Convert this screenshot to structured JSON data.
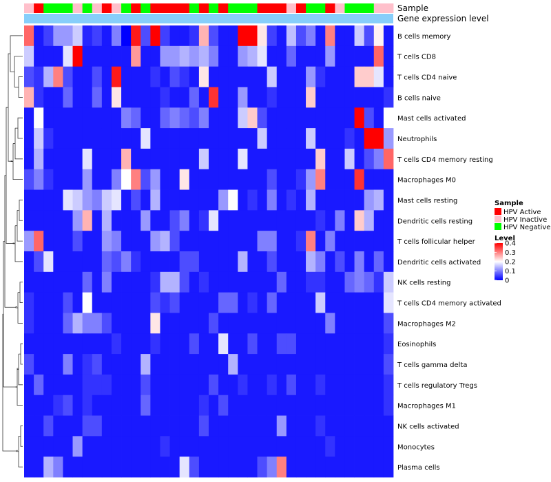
{
  "chart_data": {
    "type": "heatmap",
    "annotation_rows": [
      "Sample",
      "Gene expression level"
    ],
    "row_labels": [
      "B cells memory",
      "T cells CD8",
      "T cells CD4 naive",
      "B cells naive",
      "Mast cells activated",
      "Neutrophils",
      "T cells CD4 memory resting",
      "Macrophages M0",
      "Mast cells resting",
      "Dendritic cells resting",
      "T cells follicular helper",
      "Dendritic cells activated",
      "NK cells resting",
      "T cells CD4 memory activated",
      "Macrophages M2",
      "Eosinophils",
      "T cells gamma delta",
      "T cells regulatory  Tregs",
      "Macrophages M1",
      "NK cells activated",
      "Monocytes",
      "Plasma cells"
    ],
    "sample_groups": [
      "Inactive",
      "Active",
      "Negative",
      "Negative",
      "Negative",
      "Inactive",
      "Negative",
      "Inactive",
      "Active",
      "Inactive",
      "Negative",
      "Active",
      "Negative",
      "Active",
      "Active",
      "Active",
      "Active",
      "Negative",
      "Active",
      "Negative",
      "Active",
      "Negative",
      "Negative",
      "Negative",
      "Active",
      "Active",
      "Active",
      "Inactive",
      "Active",
      "Negative",
      "Negative",
      "Active",
      "Inactive",
      "Negative",
      "Negative",
      "Negative",
      "Inactive",
      "Inactive"
    ],
    "sample_legend": {
      "title": "Sample",
      "entries": [
        {
          "label": "HPV Active",
          "color": "#ff0000"
        },
        {
          "label": "HPV Inactive",
          "color": "#ffc0cb"
        },
        {
          "label": "HPV Negative",
          "color": "#00ff00"
        }
      ]
    },
    "expression_bar_color": "#87cefa",
    "color_scale": {
      "title": "Level",
      "min": 0,
      "max": 0.4,
      "ticks": [
        {
          "value": 0.4,
          "label": "0.4"
        },
        {
          "value": 0.3,
          "label": "0.3"
        },
        {
          "value": 0.2,
          "label": "0.2"
        },
        {
          "value": 0.1,
          "label": "0.1"
        },
        {
          "value": 0,
          "label": "0"
        }
      ],
      "stops": [
        {
          "value": 0,
          "color": "#0000ff"
        },
        {
          "value": 0.2,
          "color": "#ffffff"
        },
        {
          "value": 0.4,
          "color": "#ff0000"
        }
      ]
    },
    "values": [
      [
        0.32,
        0.02,
        0.05,
        0.12,
        0.12,
        0.16,
        0.03,
        0.05,
        0.02,
        0.1,
        0.0,
        0.38,
        0.06,
        0.4,
        0.05,
        0.02,
        0.02,
        0.04,
        0.26,
        0.06,
        0.02,
        0.02,
        0.4,
        0.4,
        0.22,
        0.05,
        0.02,
        0.15,
        0.06,
        0.1,
        0.02,
        0.3,
        0.02,
        0.02,
        0.16,
        0.06,
        0.21,
        0.02
      ],
      [
        0.16,
        0.02,
        0.02,
        0.02,
        0.18,
        0.4,
        0.02,
        0.02,
        0.02,
        0.02,
        0.02,
        0.28,
        0.02,
        0.02,
        0.12,
        0.12,
        0.14,
        0.12,
        0.14,
        0.1,
        0.02,
        0.02,
        0.12,
        0.14,
        0.18,
        0.02,
        0.02,
        0.08,
        0.02,
        0.02,
        0.02,
        0.12,
        0.02,
        0.02,
        0.02,
        0.02,
        0.32,
        0.02
      ],
      [
        0.06,
        0.04,
        0.14,
        0.3,
        0.06,
        0.02,
        0.02,
        0.06,
        0.02,
        0.38,
        0.02,
        0.02,
        0.02,
        0.04,
        0.02,
        0.06,
        0.04,
        0.02,
        0.22,
        0.02,
        0.02,
        0.02,
        0.02,
        0.02,
        0.02,
        0.16,
        0.02,
        0.02,
        0.02,
        0.12,
        0.04,
        0.02,
        0.02,
        0.02,
        0.24,
        0.24,
        0.18,
        0.02
      ],
      [
        0.26,
        0.04,
        0.02,
        0.02,
        0.08,
        0.02,
        0.02,
        0.08,
        0.02,
        0.22,
        0.02,
        0.02,
        0.02,
        0.02,
        0.04,
        0.02,
        0.02,
        0.08,
        0.02,
        0.36,
        0.02,
        0.02,
        0.12,
        0.02,
        0.02,
        0.04,
        0.02,
        0.02,
        0.02,
        0.24,
        0.02,
        0.02,
        0.02,
        0.02,
        0.02,
        0.02,
        0.02,
        0.04
      ],
      [
        0.02,
        0.2,
        0.02,
        0.02,
        0.02,
        0.02,
        0.02,
        0.02,
        0.02,
        0.02,
        0.1,
        0.08,
        0.02,
        0.02,
        0.08,
        0.1,
        0.08,
        0.06,
        0.1,
        0.02,
        0.02,
        0.02,
        0.16,
        0.24,
        0.06,
        0.02,
        0.02,
        0.02,
        0.02,
        0.02,
        0.02,
        0.02,
        0.02,
        0.02,
        0.4,
        0.06,
        0.02,
        0.2
      ],
      [
        0.02,
        0.16,
        0.04,
        0.02,
        0.02,
        0.02,
        0.02,
        0.02,
        0.02,
        0.02,
        0.02,
        0.02,
        0.18,
        0.02,
        0.02,
        0.02,
        0.02,
        0.02,
        0.02,
        0.02,
        0.02,
        0.02,
        0.02,
        0.02,
        0.16,
        0.02,
        0.02,
        0.02,
        0.02,
        0.16,
        0.02,
        0.02,
        0.02,
        0.04,
        0.02,
        0.4,
        0.4,
        0.12
      ],
      [
        0.02,
        0.14,
        0.02,
        0.02,
        0.02,
        0.02,
        0.18,
        0.02,
        0.02,
        0.02,
        0.26,
        0.02,
        0.02,
        0.02,
        0.02,
        0.02,
        0.02,
        0.02,
        0.16,
        0.02,
        0.02,
        0.02,
        0.18,
        0.02,
        0.02,
        0.02,
        0.02,
        0.02,
        0.02,
        0.02,
        0.24,
        0.02,
        0.02,
        0.16,
        0.02,
        0.06,
        0.1,
        0.32
      ],
      [
        0.06,
        0.1,
        0.04,
        0.02,
        0.02,
        0.02,
        0.12,
        0.02,
        0.02,
        0.1,
        0.2,
        0.3,
        0.06,
        0.12,
        0.02,
        0.02,
        0.22,
        0.02,
        0.02,
        0.02,
        0.02,
        0.02,
        0.02,
        0.02,
        0.02,
        0.06,
        0.02,
        0.02,
        0.04,
        0.12,
        0.3,
        0.02,
        0.02,
        0.02,
        0.36,
        0.02,
        0.02,
        0.02
      ],
      [
        0.02,
        0.02,
        0.02,
        0.02,
        0.18,
        0.16,
        0.12,
        0.1,
        0.16,
        0.18,
        0.02,
        0.06,
        0.02,
        0.14,
        0.02,
        0.02,
        0.02,
        0.02,
        0.02,
        0.02,
        0.12,
        0.2,
        0.02,
        0.04,
        0.02,
        0.1,
        0.02,
        0.04,
        0.02,
        0.14,
        0.02,
        0.02,
        0.02,
        0.02,
        0.02,
        0.12,
        0.14,
        0.02
      ],
      [
        0.02,
        0.02,
        0.02,
        0.02,
        0.02,
        0.12,
        0.26,
        0.02,
        0.14,
        0.02,
        0.02,
        0.02,
        0.12,
        0.02,
        0.02,
        0.06,
        0.1,
        0.02,
        0.04,
        0.18,
        0.02,
        0.02,
        0.02,
        0.02,
        0.02,
        0.02,
        0.02,
        0.02,
        0.02,
        0.02,
        0.04,
        0.02,
        0.1,
        0.02,
        0.24,
        0.14,
        0.02,
        0.02
      ],
      [
        0.12,
        0.32,
        0.02,
        0.02,
        0.02,
        0.06,
        0.02,
        0.02,
        0.12,
        0.1,
        0.02,
        0.02,
        0.02,
        0.12,
        0.14,
        0.06,
        0.02,
        0.02,
        0.02,
        0.02,
        0.02,
        0.02,
        0.02,
        0.02,
        0.1,
        0.1,
        0.02,
        0.02,
        0.04,
        0.3,
        0.02,
        0.1,
        0.02,
        0.02,
        0.02,
        0.02,
        0.02,
        0.02
      ],
      [
        0.02,
        0.06,
        0.18,
        0.02,
        0.02,
        0.02,
        0.02,
        0.02,
        0.08,
        0.06,
        0.1,
        0.04,
        0.02,
        0.02,
        0.02,
        0.02,
        0.06,
        0.06,
        0.02,
        0.02,
        0.02,
        0.02,
        0.14,
        0.02,
        0.02,
        0.06,
        0.02,
        0.02,
        0.02,
        0.14,
        0.1,
        0.02,
        0.06,
        0.02,
        0.1,
        0.02,
        0.08,
        0.02
      ],
      [
        0.02,
        0.02,
        0.02,
        0.02,
        0.02,
        0.02,
        0.08,
        0.02,
        0.1,
        0.02,
        0.02,
        0.02,
        0.02,
        0.04,
        0.14,
        0.14,
        0.06,
        0.02,
        0.04,
        0.02,
        0.02,
        0.02,
        0.02,
        0.02,
        0.02,
        0.02,
        0.08,
        0.02,
        0.02,
        0.04,
        0.04,
        0.02,
        0.02,
        0.08,
        0.1,
        0.08,
        0.04,
        0.16
      ],
      [
        0.04,
        0.02,
        0.02,
        0.02,
        0.06,
        0.02,
        0.2,
        0.02,
        0.02,
        0.02,
        0.02,
        0.02,
        0.02,
        0.06,
        0.04,
        0.06,
        0.02,
        0.02,
        0.02,
        0.02,
        0.08,
        0.08,
        0.02,
        0.04,
        0.02,
        0.08,
        0.02,
        0.02,
        0.02,
        0.02,
        0.16,
        0.02,
        0.02,
        0.02,
        0.02,
        0.02,
        0.02,
        0.18
      ],
      [
        0.04,
        0.02,
        0.02,
        0.02,
        0.08,
        0.14,
        0.1,
        0.1,
        0.06,
        0.02,
        0.02,
        0.02,
        0.02,
        0.22,
        0.02,
        0.02,
        0.02,
        0.02,
        0.02,
        0.06,
        0.02,
        0.02,
        0.02,
        0.02,
        0.02,
        0.02,
        0.02,
        0.02,
        0.02,
        0.02,
        0.02,
        0.1,
        0.02,
        0.02,
        0.02,
        0.02,
        0.02,
        0.06
      ],
      [
        0.02,
        0.02,
        0.02,
        0.02,
        0.02,
        0.02,
        0.02,
        0.02,
        0.02,
        0.04,
        0.02,
        0.02,
        0.02,
        0.04,
        0.02,
        0.02,
        0.02,
        0.06,
        0.02,
        0.02,
        0.18,
        0.02,
        0.02,
        0.06,
        0.02,
        0.02,
        0.06,
        0.06,
        0.02,
        0.02,
        0.02,
        0.02,
        0.02,
        0.02,
        0.02,
        0.02,
        0.02,
        0.04
      ],
      [
        0.06,
        0.02,
        0.02,
        0.02,
        0.1,
        0.02,
        0.04,
        0.06,
        0.02,
        0.02,
        0.02,
        0.02,
        0.14,
        0.02,
        0.02,
        0.02,
        0.02,
        0.02,
        0.02,
        0.02,
        0.02,
        0.14,
        0.02,
        0.02,
        0.02,
        0.02,
        0.02,
        0.02,
        0.02,
        0.02,
        0.02,
        0.02,
        0.02,
        0.02,
        0.02,
        0.02,
        0.02,
        0.06
      ],
      [
        0.02,
        0.08,
        0.02,
        0.02,
        0.02,
        0.02,
        0.04,
        0.04,
        0.04,
        0.02,
        0.02,
        0.02,
        0.06,
        0.02,
        0.02,
        0.02,
        0.02,
        0.02,
        0.02,
        0.06,
        0.02,
        0.02,
        0.04,
        0.02,
        0.02,
        0.04,
        0.02,
        0.06,
        0.02,
        0.02,
        0.04,
        0.02,
        0.02,
        0.02,
        0.02,
        0.02,
        0.02,
        0.04
      ],
      [
        0.02,
        0.02,
        0.02,
        0.04,
        0.06,
        0.02,
        0.04,
        0.02,
        0.02,
        0.02,
        0.02,
        0.02,
        0.08,
        0.02,
        0.02,
        0.02,
        0.02,
        0.02,
        0.04,
        0.02,
        0.06,
        0.02,
        0.02,
        0.02,
        0.02,
        0.02,
        0.02,
        0.02,
        0.02,
        0.02,
        0.02,
        0.02,
        0.02,
        0.02,
        0.02,
        0.02,
        0.02,
        0.04
      ],
      [
        0.02,
        0.02,
        0.06,
        0.02,
        0.02,
        0.02,
        0.06,
        0.06,
        0.02,
        0.02,
        0.02,
        0.02,
        0.02,
        0.02,
        0.02,
        0.02,
        0.02,
        0.02,
        0.06,
        0.02,
        0.02,
        0.02,
        0.02,
        0.02,
        0.02,
        0.02,
        0.12,
        0.02,
        0.02,
        0.02,
        0.04,
        0.02,
        0.02,
        0.02,
        0.02,
        0.02,
        0.02,
        0.02
      ],
      [
        0.02,
        0.02,
        0.02,
        0.02,
        0.02,
        0.12,
        0.02,
        0.02,
        0.02,
        0.02,
        0.02,
        0.02,
        0.02,
        0.02,
        0.04,
        0.02,
        0.02,
        0.02,
        0.02,
        0.02,
        0.02,
        0.02,
        0.02,
        0.02,
        0.02,
        0.02,
        0.02,
        0.02,
        0.02,
        0.02,
        0.02,
        0.04,
        0.02,
        0.02,
        0.02,
        0.02,
        0.02,
        0.02
      ],
      [
        0.02,
        0.02,
        0.14,
        0.1,
        0.02,
        0.02,
        0.02,
        0.02,
        0.02,
        0.02,
        0.02,
        0.02,
        0.02,
        0.02,
        0.02,
        0.02,
        0.18,
        0.06,
        0.02,
        0.02,
        0.02,
        0.02,
        0.02,
        0.02,
        0.06,
        0.1,
        0.3,
        0.02,
        0.02,
        0.02,
        0.02,
        0.02,
        0.02,
        0.02,
        0.02,
        0.02,
        0.02,
        0.02
      ]
    ]
  }
}
